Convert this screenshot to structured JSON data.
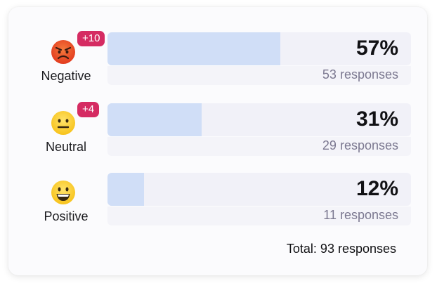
{
  "rows": [
    {
      "sentiment": "Negative",
      "icon": "angry-face-icon",
      "badge": "+10",
      "percent_label": "57%",
      "percent": 57,
      "responses_label": "53 responses"
    },
    {
      "sentiment": "Neutral",
      "icon": "neutral-face-icon",
      "badge": "+4",
      "percent_label": "31%",
      "percent": 31,
      "responses_label": "29 responses"
    },
    {
      "sentiment": "Positive",
      "icon": "grinning-face-icon",
      "badge": "",
      "percent_label": "12%",
      "percent": 12,
      "responses_label": "11 responses"
    }
  ],
  "total_label": "Total: 93 responses",
  "colors": {
    "bar_fill": "#d0def7",
    "bar_track": "#f1f1f8",
    "badge": "#d52b62"
  }
}
